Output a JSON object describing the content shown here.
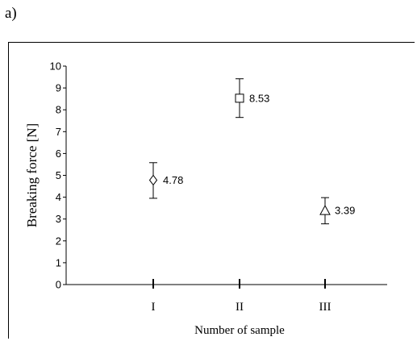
{
  "panel_label": "a)",
  "chart_data": {
    "type": "scatter",
    "title": "",
    "xlabel": "Number of sample",
    "ylabel": "Breaking force [N]",
    "ylim": [
      0,
      10
    ],
    "yticks": [
      0,
      1,
      2,
      3,
      4,
      5,
      6,
      7,
      8,
      9,
      10
    ],
    "categories": [
      "I",
      "II",
      "III"
    ],
    "points": [
      {
        "category": "I",
        "value": 4.78,
        "label": "4.78",
        "err_low": 3.95,
        "err_high": 5.58,
        "marker": "diamond"
      },
      {
        "category": "II",
        "value": 8.53,
        "label": "8.53",
        "err_low": 7.65,
        "err_high": 9.42,
        "marker": "square"
      },
      {
        "category": "III",
        "value": 3.39,
        "label": "3.39",
        "err_low": 2.78,
        "err_high": 3.98,
        "marker": "triangle"
      }
    ],
    "grid": false,
    "legend": "none"
  }
}
